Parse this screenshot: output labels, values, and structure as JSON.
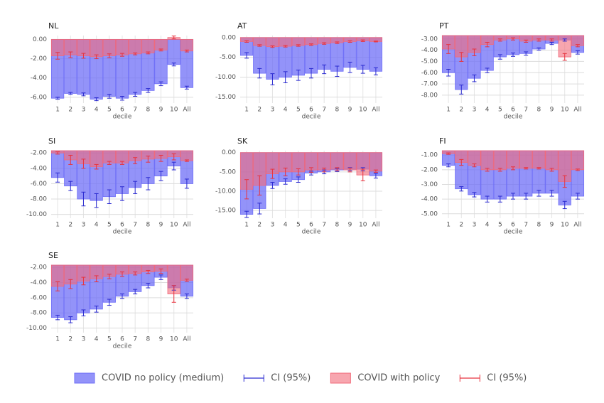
{
  "legend": [
    {
      "name": "COVID no policy (medium)",
      "color": "#6f6ff7",
      "ci_label": "CI (95%)",
      "ci_color": "#2a2ad0"
    },
    {
      "name": "COVID with policy",
      "color": "#f26a7a",
      "ci_label": "CI (95%)",
      "ci_color": "#e8333e"
    }
  ],
  "chart_data": [
    {
      "type": "bar",
      "title": "NL",
      "xlabel": "decile",
      "categories": [
        "1",
        "2",
        "3",
        "4",
        "5",
        "6",
        "7",
        "8",
        "9",
        "10",
        "All"
      ],
      "ylim": [
        -6.6,
        0.4
      ],
      "yticks": [
        {
          "value": 0,
          "label": "0.00"
        },
        {
          "value": -2,
          "label": "-2.00"
        },
        {
          "value": -4,
          "label": "-4.00"
        },
        {
          "value": -6,
          "label": "-6.00"
        }
      ],
      "series": [
        {
          "values": [
            -6.1,
            -5.6,
            -5.7,
            -6.2,
            -5.9,
            -6.1,
            -5.7,
            -5.3,
            -4.6,
            -2.6,
            -5.0
          ],
          "errors": [
            0.1,
            0.1,
            0.15,
            0.15,
            0.2,
            0.2,
            0.2,
            0.2,
            0.2,
            0.15,
            0.15
          ]
        },
        {
          "values": [
            -1.7,
            -1.6,
            -1.7,
            -1.8,
            -1.7,
            -1.6,
            -1.5,
            -1.4,
            -1.1,
            0.2,
            -1.2
          ],
          "errors": [
            0.35,
            0.3,
            0.25,
            0.2,
            0.2,
            0.15,
            0.1,
            0.1,
            0.1,
            0.15,
            0.1
          ]
        }
      ]
    },
    {
      "type": "bar",
      "title": "AT",
      "xlabel": "decile",
      "categories": [
        "1",
        "2",
        "3",
        "4",
        "5",
        "6",
        "7",
        "8",
        "9",
        "10",
        "All"
      ],
      "ylim": [
        -16.5,
        0.5
      ],
      "yticks": [
        {
          "value": 0,
          "label": "0.00"
        },
        {
          "value": -5,
          "label": "-5.00"
        },
        {
          "value": -10,
          "label": "-10.00"
        },
        {
          "value": -15,
          "label": "-15.00"
        }
      ],
      "series": [
        {
          "values": [
            -4.5,
            -9,
            -10.5,
            -10,
            -9.5,
            -9,
            -8,
            -8.5,
            -7.5,
            -8,
            -8.5
          ],
          "errors": [
            0.7,
            1.2,
            1.4,
            1.4,
            1.3,
            1.2,
            1.1,
            1.3,
            1.3,
            1.0,
            0.9
          ]
        },
        {
          "values": [
            -1,
            -2,
            -2.3,
            -2.2,
            -2,
            -1.8,
            -1.5,
            -1.3,
            -1,
            -0.8,
            -1
          ],
          "errors": [
            0.2,
            0.2,
            0.2,
            0.2,
            0.2,
            0.2,
            0.2,
            0.2,
            0.2,
            0.2,
            0.1
          ]
        }
      ]
    },
    {
      "type": "bar",
      "title": "PT",
      "xlabel": "decile",
      "categories": [
        "1",
        "2",
        "3",
        "4",
        "5",
        "6",
        "7",
        "8",
        "9",
        "10",
        "All"
      ],
      "ylim": [
        -8.7,
        -2.7
      ],
      "yticks": [
        {
          "value": -3,
          "label": "-3.00"
        },
        {
          "value": -4,
          "label": "-4.00"
        },
        {
          "value": -5,
          "label": "-5.00"
        },
        {
          "value": -6,
          "label": "-6.00"
        },
        {
          "value": -7,
          "label": "-7.00"
        },
        {
          "value": -8,
          "label": "-8.00"
        }
      ],
      "series": [
        {
          "values": [
            -6,
            -7.5,
            -6.5,
            -5.8,
            -4.6,
            -4.4,
            -4.3,
            -3.9,
            -3.4,
            -3.1,
            -4.2
          ],
          "errors": [
            0.3,
            0.4,
            0.3,
            0.2,
            0.2,
            0.15,
            0.15,
            0.1,
            0.1,
            0.1,
            0.15
          ]
        },
        {
          "values": [
            -3.9,
            -4.6,
            -4.2,
            -3.5,
            -3.1,
            -3.0,
            -3.2,
            -3.1,
            -3.1,
            -4.6,
            -3.6
          ],
          "errors": [
            0.4,
            0.4,
            0.3,
            0.2,
            0.1,
            0.1,
            0.1,
            0.1,
            0.1,
            0.3,
            0.1
          ]
        }
      ]
    },
    {
      "type": "bar",
      "title": "SI",
      "xlabel": "decile",
      "categories": [
        "1",
        "2",
        "3",
        "4",
        "5",
        "6",
        "7",
        "8",
        "9",
        "10",
        "All"
      ],
      "ylim": [
        -10.5,
        -1.7
      ],
      "yticks": [
        {
          "value": -2,
          "label": "-2.00"
        },
        {
          "value": -4,
          "label": "-4.00"
        },
        {
          "value": -6,
          "label": "-6.00"
        },
        {
          "value": -8,
          "label": "-8.00"
        },
        {
          "value": -10,
          "label": "-10.00"
        }
      ],
      "series": [
        {
          "values": [
            -5.2,
            -6.3,
            -8,
            -8.2,
            -7.7,
            -7.3,
            -6.5,
            -6,
            -5,
            -3.7,
            -6
          ],
          "errors": [
            0.6,
            0.6,
            0.9,
            0.9,
            0.9,
            0.9,
            0.8,
            0.8,
            0.6,
            0.5,
            0.6
          ]
        },
        {
          "values": [
            -2,
            -2.9,
            -3.4,
            -3.8,
            -3.3,
            -3.3,
            -3,
            -2.8,
            -2.7,
            -2.5,
            -3
          ],
          "errors": [
            0.15,
            0.6,
            0.6,
            0.3,
            0.2,
            0.2,
            0.4,
            0.4,
            0.4,
            0.4,
            0.1
          ]
        }
      ]
    },
    {
      "type": "bar",
      "title": "SK",
      "xlabel": "decile",
      "categories": [
        "1",
        "2",
        "3",
        "4",
        "5",
        "6",
        "7",
        "8",
        "9",
        "10",
        "All"
      ],
      "ylim": [
        -17,
        0.5
      ],
      "yticks": [
        {
          "value": 0,
          "label": "0.00"
        },
        {
          "value": -5,
          "label": "-5.00"
        },
        {
          "value": -10,
          "label": "-10.00"
        },
        {
          "value": -15,
          "label": "-15.00"
        }
      ],
      "series": [
        {
          "values": [
            -16,
            -14.5,
            -8.5,
            -7.5,
            -7,
            -5.3,
            -5,
            -4.5,
            -4.3,
            -4.3,
            -6
          ],
          "errors": [
            0.8,
            1.4,
            0.8,
            0.7,
            0.7,
            0.5,
            0.5,
            0.4,
            0.4,
            0.4,
            0.6
          ]
        },
        {
          "values": [
            -9.5,
            -8.5,
            -5.5,
            -5,
            -5,
            -4.5,
            -4.5,
            -4.3,
            -4.5,
            -5.8,
            -4.8
          ],
          "errors": [
            2.5,
            2.5,
            1.2,
            1,
            0.8,
            0.6,
            0.5,
            0.4,
            0.5,
            1.5,
            0.3
          ]
        }
      ]
    },
    {
      "type": "bar",
      "title": "FI",
      "xlabel": "decile",
      "categories": [
        "1",
        "2",
        "3",
        "4",
        "5",
        "6",
        "7",
        "8",
        "9",
        "10",
        "All"
      ],
      "ylim": [
        -5.3,
        -0.7
      ],
      "yticks": [
        {
          "value": -1,
          "label": "-1.00"
        },
        {
          "value": -2,
          "label": "-2.00"
        },
        {
          "value": -3,
          "label": "-3.00"
        },
        {
          "value": -4,
          "label": "-4.00"
        },
        {
          "value": -5,
          "label": "-5.00"
        }
      ],
      "series": [
        {
          "values": [
            -1.7,
            -3.3,
            -3.7,
            -4,
            -4,
            -3.8,
            -3.8,
            -3.6,
            -3.6,
            -4.4,
            -3.8
          ],
          "errors": [
            0.1,
            0.15,
            0.15,
            0.2,
            0.2,
            0.2,
            0.2,
            0.2,
            0.2,
            0.25,
            0.2
          ]
        },
        {
          "values": [
            -0.9,
            -1.5,
            -1.7,
            -2,
            -2,
            -1.9,
            -1.9,
            -1.9,
            -2,
            -2.8,
            -2
          ],
          "errors": [
            0.05,
            0.2,
            0.1,
            0.1,
            0.1,
            0.1,
            0.05,
            0.05,
            0.1,
            0.4,
            0.05
          ]
        }
      ]
    },
    {
      "type": "bar",
      "title": "SE",
      "xlabel": "decile",
      "categories": [
        "1",
        "2",
        "3",
        "4",
        "5",
        "6",
        "7",
        "8",
        "9",
        "10",
        "All"
      ],
      "ylim": [
        -10.6,
        -1.7
      ],
      "yticks": [
        {
          "value": -2,
          "label": "-2.00"
        },
        {
          "value": -4,
          "label": "-4.00"
        },
        {
          "value": -6,
          "label": "-6.00"
        },
        {
          "value": -8,
          "label": "-8.00"
        },
        {
          "value": -10,
          "label": "-10.00"
        }
      ],
      "series": [
        {
          "values": [
            -8.6,
            -8.9,
            -8,
            -7.5,
            -6.6,
            -5.8,
            -5.2,
            -4.4,
            -3.3,
            -4.7,
            -5.8
          ],
          "errors": [
            0.3,
            0.4,
            0.4,
            0.4,
            0.4,
            0.3,
            0.3,
            0.3,
            0.3,
            0.3,
            0.3
          ]
        },
        {
          "values": [
            -4.5,
            -4.2,
            -3.8,
            -3.5,
            -3.2,
            -2.9,
            -2.8,
            -2.6,
            -2.5,
            -5.5,
            -3.7
          ],
          "errors": [
            0.6,
            0.6,
            0.5,
            0.4,
            0.3,
            0.3,
            0.2,
            0.2,
            0.3,
            1.1,
            0.15
          ]
        }
      ]
    }
  ]
}
